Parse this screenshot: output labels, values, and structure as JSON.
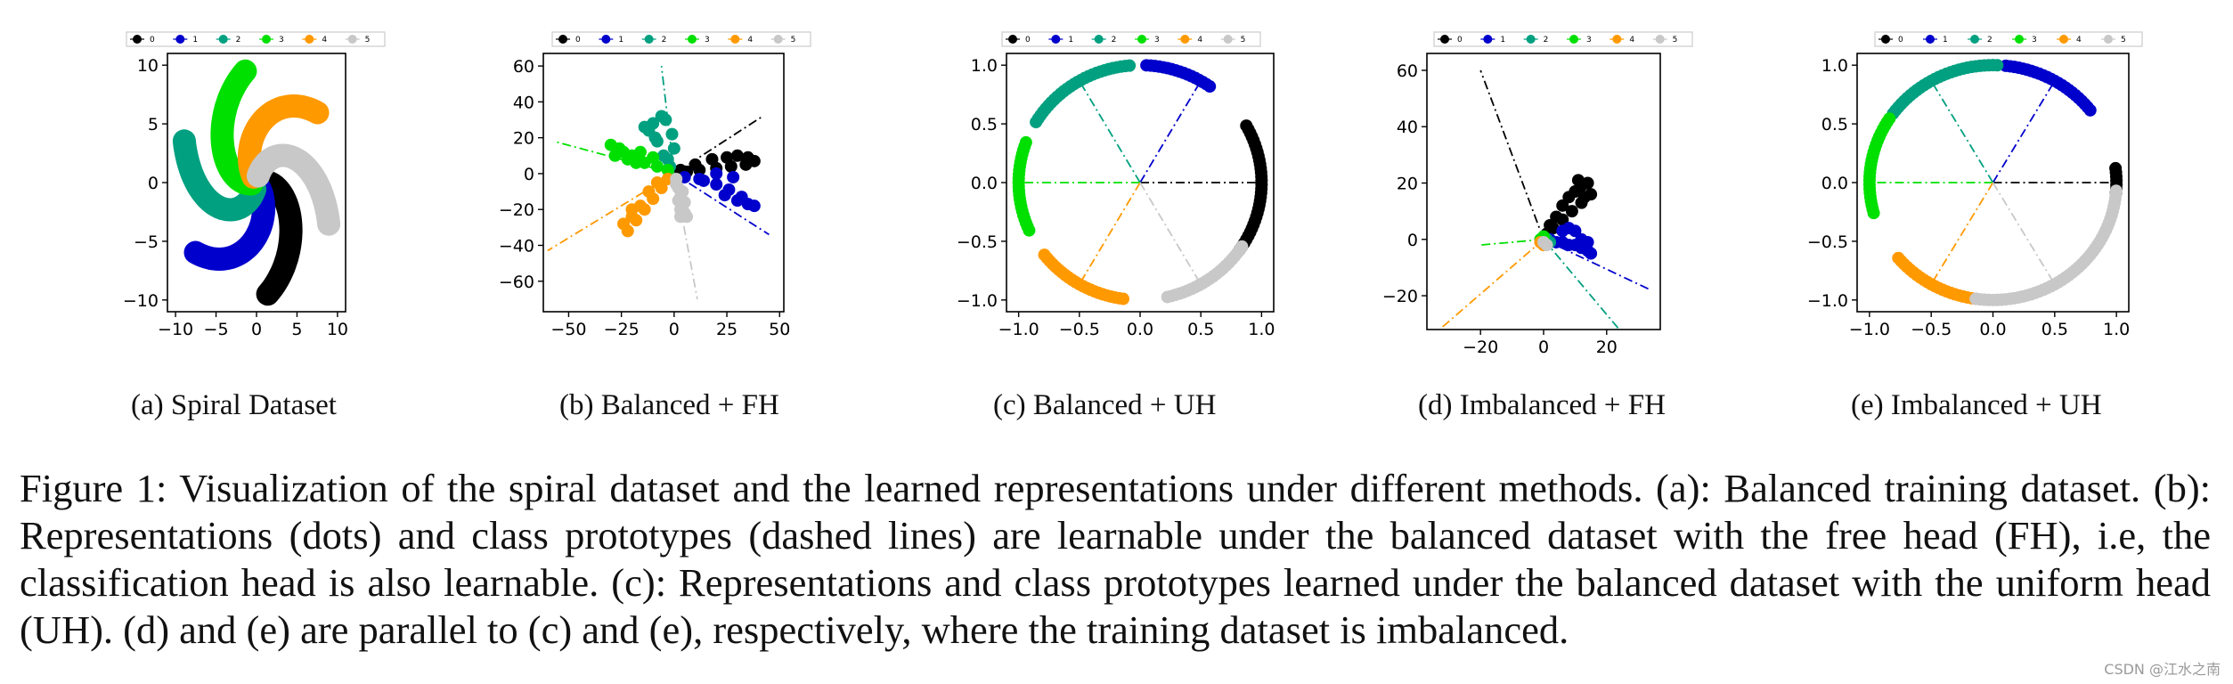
{
  "colors": [
    "#000000",
    "#0000cc",
    "#00a080",
    "#00e000",
    "#ff9900",
    "#c8c8c8"
  ],
  "legend_labels": [
    "0",
    "1",
    "2",
    "3",
    "4",
    "5"
  ],
  "subcaptions": [
    "(a) Spiral Dataset",
    "(b) Balanced + FH",
    "(c) Balanced + UH",
    "(d) Imbalanced + FH",
    "(e) Imbalanced + UH"
  ],
  "caption": "Figure 1: Visualization of the spiral dataset and the learned representations under different methods. (a): Balanced training dataset. (b): Representations (dots) and class prototypes (dashed lines) are learnable under the balanced dataset with the free head (FH), i.e, the classification head is also learnable. (c): Representations and class prototypes learned under the balanced dataset with the uniform head (UH). (d) and (e) are parallel to (c) and (e), respectively, where the training dataset is imbalanced.",
  "watermark": "CSDN @江水之南",
  "chart_data": [
    {
      "id": "a",
      "type": "scatter",
      "title": "",
      "xlim": [
        -11,
        11
      ],
      "ylim": [
        -11,
        11
      ],
      "xticks": [
        -10,
        -5,
        0,
        5,
        10
      ],
      "yticks": [
        -10,
        -5,
        0,
        5,
        10
      ],
      "xtick_labels": [
        "−10",
        "−5",
        "0",
        "5",
        "10"
      ],
      "ytick_labels": [
        "−10",
        "−5",
        "0",
        "5",
        "10"
      ],
      "legend": [
        "0",
        "1",
        "2",
        "3",
        "4",
        "5"
      ],
      "series": [
        {
          "name": "0",
          "shape": "spiral",
          "start_angle_deg": 10
        },
        {
          "name": "1",
          "shape": "spiral",
          "start_angle_deg": -50
        },
        {
          "name": "2",
          "shape": "spiral",
          "start_angle_deg": -110
        },
        {
          "name": "3",
          "shape": "spiral",
          "start_angle_deg": 190
        },
        {
          "name": "4",
          "shape": "spiral",
          "start_angle_deg": 130
        },
        {
          "name": "5",
          "shape": "spiral",
          "start_angle_deg": 70
        }
      ]
    },
    {
      "id": "b",
      "type": "scatter",
      "title": "",
      "xlim": [
        -62,
        52
      ],
      "ylim": [
        -77,
        67
      ],
      "xticks": [
        -50,
        -25,
        0,
        25,
        50
      ],
      "yticks": [
        -60,
        -40,
        -20,
        0,
        20,
        40,
        60
      ],
      "xtick_labels": [
        "−50",
        "−25",
        "0",
        "25",
        "50"
      ],
      "ytick_labels": [
        "−60",
        "−40",
        "−20",
        "0",
        "20",
        "40",
        "60"
      ],
      "legend": [
        "0",
        "1",
        "2",
        "3",
        "4",
        "5"
      ],
      "prototypes": [
        {
          "class": "0",
          "x": 42,
          "y": 32
        },
        {
          "class": "1",
          "x": 45,
          "y": -34
        },
        {
          "class": "2",
          "x": -6,
          "y": 60
        },
        {
          "class": "3",
          "x": -57,
          "y": 18
        },
        {
          "class": "4",
          "x": -60,
          "y": -43
        },
        {
          "class": "5",
          "x": 11,
          "y": -70
        }
      ],
      "clusters": [
        {
          "class": "0",
          "points": [
            [
              3,
              2
            ],
            [
              10,
              5
            ],
            [
              18,
              8
            ],
            [
              25,
              9
            ],
            [
              30,
              10
            ],
            [
              35,
              9
            ],
            [
              38,
              7
            ],
            [
              34,
              5
            ],
            [
              27,
              4
            ],
            [
              20,
              3
            ],
            [
              12,
              2
            ],
            [
              6,
              1
            ]
          ]
        },
        {
          "class": "1",
          "points": [
            [
              5,
              -2
            ],
            [
              12,
              -3
            ],
            [
              20,
              -6
            ],
            [
              26,
              -9
            ],
            [
              32,
              -13
            ],
            [
              38,
              -18
            ],
            [
              28,
              -2
            ],
            [
              20,
              0
            ],
            [
              14,
              -4
            ],
            [
              24,
              -12
            ],
            [
              30,
              -15
            ],
            [
              35,
              -17
            ]
          ]
        },
        {
          "class": "2",
          "points": [
            [
              -2,
              4
            ],
            [
              -5,
              10
            ],
            [
              -8,
              18
            ],
            [
              -12,
              24
            ],
            [
              -10,
              28
            ],
            [
              -6,
              32
            ],
            [
              -4,
              30
            ],
            [
              -1,
              22
            ],
            [
              0,
              14
            ],
            [
              -9,
              20
            ],
            [
              -14,
              26
            ],
            [
              -3,
              8
            ]
          ]
        },
        {
          "class": "3",
          "points": [
            [
              -3,
              2
            ],
            [
              -8,
              4
            ],
            [
              -14,
              6
            ],
            [
              -20,
              10
            ],
            [
              -26,
              14
            ],
            [
              -30,
              16
            ],
            [
              -28,
              10
            ],
            [
              -22,
              8
            ],
            [
              -16,
              12
            ],
            [
              -10,
              9
            ],
            [
              -24,
              12
            ],
            [
              -18,
              6
            ]
          ]
        },
        {
          "class": "4",
          "points": [
            [
              -3,
              -3
            ],
            [
              -6,
              -8
            ],
            [
              -10,
              -14
            ],
            [
              -14,
              -20
            ],
            [
              -18,
              -26
            ],
            [
              -22,
              -32
            ],
            [
              -20,
              -24
            ],
            [
              -16,
              -18
            ],
            [
              -12,
              -10
            ],
            [
              -24,
              -28
            ],
            [
              -8,
              -5
            ],
            [
              -20,
              -20
            ]
          ]
        },
        {
          "class": "5",
          "points": [
            [
              1,
              -3
            ],
            [
              2,
              -8
            ],
            [
              3,
              -13
            ],
            [
              4,
              -18
            ],
            [
              5,
              -22
            ],
            [
              6,
              -24
            ],
            [
              3,
              -20
            ],
            [
              2,
              -15
            ],
            [
              4,
              -10
            ],
            [
              5,
              -16
            ],
            [
              1,
              -6
            ],
            [
              3,
              -24
            ]
          ]
        }
      ]
    },
    {
      "id": "c",
      "type": "scatter",
      "title": "",
      "xlim": [
        -1.1,
        1.1
      ],
      "ylim": [
        -1.1,
        1.1
      ],
      "xticks": [
        -1.0,
        -0.5,
        0.0,
        0.5,
        1.0
      ],
      "yticks": [
        -1.0,
        -0.5,
        0.0,
        0.5,
        1.0
      ],
      "xtick_labels": [
        "−1.0",
        "−0.5",
        "0.0",
        "0.5",
        "1.0"
      ],
      "ytick_labels": [
        "−1.0",
        "−0.5",
        "0.0",
        "0.5",
        "1.0"
      ],
      "legend": [
        "0",
        "1",
        "2",
        "3",
        "4",
        "5"
      ],
      "prototypes": [
        {
          "class": "0",
          "angle_deg": 0
        },
        {
          "class": "1",
          "angle_deg": 60
        },
        {
          "class": "2",
          "angle_deg": 120
        },
        {
          "class": "3",
          "angle_deg": 180
        },
        {
          "class": "4",
          "angle_deg": 240
        },
        {
          "class": "5",
          "angle_deg": 300
        }
      ],
      "arcs_deg": [
        {
          "class": "0",
          "from": -35,
          "to": 30
        },
        {
          "class": "1",
          "from": 55,
          "to": 88
        },
        {
          "class": "2",
          "from": 95,
          "to": 150
        },
        {
          "class": "3",
          "from": 160,
          "to": 205
        },
        {
          "class": "4",
          "from": 218,
          "to": 262
        },
        {
          "class": "5",
          "from": 283,
          "to": 328
        }
      ]
    },
    {
      "id": "d",
      "type": "scatter",
      "title": "",
      "xlim": [
        -37,
        37
      ],
      "ylim": [
        -32,
        66
      ],
      "xticks": [
        -20,
        0,
        20
      ],
      "yticks": [
        -20,
        0,
        20,
        40,
        60
      ],
      "xtick_labels": [
        "−20",
        "0",
        "20"
      ],
      "ytick_labels": [
        "−20",
        "0",
        "20",
        "40",
        "60"
      ],
      "legend": [
        "0",
        "1",
        "2",
        "3",
        "4",
        "5"
      ],
      "prototypes": [
        {
          "class": "0",
          "x": -20,
          "y": 60
        },
        {
          "class": "1",
          "x": 34,
          "y": -18
        },
        {
          "class": "2",
          "x": 24,
          "y": -32
        },
        {
          "class": "3",
          "x": -20,
          "y": -2
        },
        {
          "class": "4",
          "x": -33,
          "y": -32
        },
        {
          "class": "5",
          "x": 0,
          "y": 0
        }
      ],
      "clusters": [
        {
          "class": "0",
          "points": [
            [
              1,
              2
            ],
            [
              2,
              5
            ],
            [
              4,
              8
            ],
            [
              6,
              12
            ],
            [
              8,
              15
            ],
            [
              10,
              17
            ],
            [
              12,
              19
            ],
            [
              14,
              20
            ],
            [
              15,
              16
            ],
            [
              12,
              13
            ],
            [
              9,
              10
            ],
            [
              6,
              7
            ],
            [
              3,
              4
            ],
            [
              11,
              21
            ],
            [
              13,
              15
            ]
          ]
        },
        {
          "class": "1",
          "points": [
            [
              2,
              0
            ],
            [
              4,
              -1
            ],
            [
              6,
              -1
            ],
            [
              8,
              -2
            ],
            [
              10,
              -2
            ],
            [
              12,
              -3
            ],
            [
              14,
              -4
            ],
            [
              15,
              -5
            ],
            [
              10,
              3
            ],
            [
              8,
              4
            ],
            [
              6,
              3
            ],
            [
              12,
              0
            ],
            [
              14,
              -1
            ]
          ]
        },
        {
          "class": "2",
          "points": [
            [
              1,
              0
            ],
            [
              2,
              -1
            ]
          ]
        },
        {
          "class": "3",
          "points": [
            [
              0,
              1
            ],
            [
              -1,
              0
            ]
          ]
        },
        {
          "class": "4",
          "points": [
            [
              -1,
              -1
            ],
            [
              0,
              -2
            ]
          ]
        },
        {
          "class": "5",
          "points": [
            [
              0,
              -1
            ],
            [
              1,
              -2
            ]
          ]
        }
      ]
    },
    {
      "id": "e",
      "type": "scatter",
      "title": "",
      "xlim": [
        -1.1,
        1.1
      ],
      "ylim": [
        -1.1,
        1.1
      ],
      "xticks": [
        -1.0,
        -0.5,
        0.0,
        0.5,
        1.0
      ],
      "yticks": [
        -1.0,
        -0.5,
        0.0,
        0.5,
        1.0
      ],
      "xtick_labels": [
        "−1.0",
        "−0.5",
        "0.0",
        "0.5",
        "1.0"
      ],
      "ytick_labels": [
        "−1.0",
        "−0.5",
        "0.0",
        "0.5",
        "1.0"
      ],
      "legend": [
        "0",
        "1",
        "2",
        "3",
        "4",
        "5"
      ],
      "prototypes": [
        {
          "class": "0",
          "angle_deg": 0
        },
        {
          "class": "1",
          "angle_deg": 60
        },
        {
          "class": "2",
          "angle_deg": 120
        },
        {
          "class": "3",
          "angle_deg": 180
        },
        {
          "class": "4",
          "angle_deg": 240
        },
        {
          "class": "5",
          "angle_deg": 300
        }
      ],
      "arcs_deg": [
        {
          "class": "0",
          "from": -5,
          "to": 8
        },
        {
          "class": "1",
          "from": 38,
          "to": 85
        },
        {
          "class": "2",
          "from": 88,
          "to": 145
        },
        {
          "class": "3",
          "from": 147,
          "to": 195
        },
        {
          "class": "4",
          "from": 220,
          "to": 262
        },
        {
          "class": "5",
          "from": 262,
          "to": 357
        }
      ]
    }
  ]
}
